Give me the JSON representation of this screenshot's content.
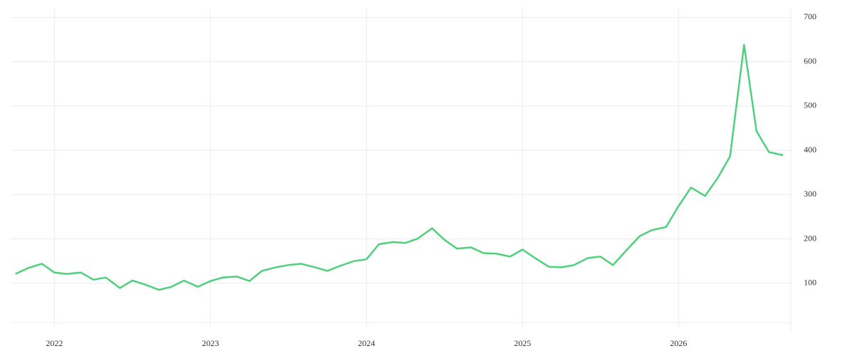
{
  "chart_data": {
    "type": "line",
    "x": [
      2021.75,
      2021.83,
      2021.92,
      2022.0,
      2022.08,
      2022.17,
      2022.25,
      2022.33,
      2022.42,
      2022.5,
      2022.58,
      2022.67,
      2022.75,
      2022.83,
      2022.92,
      2023.0,
      2023.08,
      2023.17,
      2023.25,
      2023.33,
      2023.42,
      2023.5,
      2023.58,
      2023.67,
      2023.75,
      2023.83,
      2023.92,
      2024.0,
      2024.08,
      2024.17,
      2024.25,
      2024.33,
      2024.42,
      2024.5,
      2024.58,
      2024.67,
      2024.75,
      2024.83,
      2024.92,
      2025.0,
      2025.08,
      2025.17,
      2025.25,
      2025.33,
      2025.42,
      2025.5,
      2025.58,
      2025.67,
      2025.75,
      2025.83,
      2025.92,
      2026.0,
      2026.08,
      2026.17,
      2026.25,
      2026.33,
      2026.42,
      2026.5,
      2026.58,
      2026.67
    ],
    "series": [
      {
        "color": "#4fd07d",
        "values": [
          121,
          134,
          144,
          124,
          121,
          124,
          108,
          113,
          89,
          106,
          97,
          85,
          92,
          106,
          92,
          105,
          113,
          115,
          105,
          128,
          136,
          141,
          144,
          136,
          128,
          139,
          150,
          154,
          188,
          193,
          191,
          201,
          224,
          198,
          178,
          181,
          168,
          167,
          160,
          176,
          157,
          137,
          136,
          141,
          157,
          160,
          141,
          176,
          206,
          220,
          227,
          274,
          316,
          297,
          337,
          386,
          638,
          443,
          396,
          389
        ]
      }
    ],
    "xlim": [
      2021.72,
      2026.72
    ],
    "xticks": [
      2022,
      2023,
      2024,
      2025,
      2026
    ],
    "ylim": [
      0,
      720
    ],
    "yticks": [
      100,
      200,
      300,
      400,
      500,
      600,
      700
    ],
    "grid": true
  }
}
